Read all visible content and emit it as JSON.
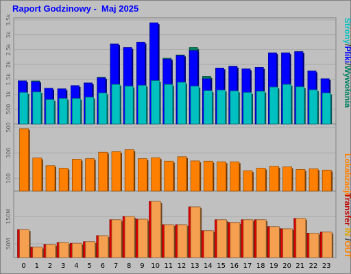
{
  "page_title": "Raport Godzinowy -  Maj 2025",
  "x_ticks": [
    "0",
    "1",
    "2",
    "3",
    "4",
    "5",
    "6",
    "7",
    "8",
    "9",
    "10",
    "11",
    "12",
    "13",
    "14",
    "15",
    "16",
    "17",
    "18",
    "19",
    "20",
    "21",
    "22",
    "23"
  ],
  "panels": {
    "top": {
      "label_parts": [
        {
          "text": "Strony",
          "color": "#00c0c0"
        },
        {
          "text": "/",
          "color": "#404040"
        },
        {
          "text": "Pliki",
          "color": "#0000ff"
        },
        {
          "text": "/",
          "color": "#404040"
        },
        {
          "text": "Wywołania",
          "color": "#008060"
        }
      ],
      "ticks": [
        "500",
        "1k",
        "1.5k",
        "2k",
        "2.5k",
        "3k",
        "3.5k"
      ]
    },
    "middle": {
      "label_parts": [
        {
          "text": "Lokalizacje",
          "color": "#ff8000"
        }
      ],
      "ticks": [
        "100",
        "300",
        "500"
      ]
    },
    "bottom": {
      "label_parts": [
        {
          "text": "Transfer",
          "color": "#c00000"
        },
        {
          "text": " IN ",
          "color": "#e0a000"
        },
        {
          "text": "/",
          "color": "#404040"
        },
        {
          "text": "OUT",
          "color": "#ff8000"
        }
      ],
      "ticks": [
        "50M",
        "150M"
      ]
    }
  },
  "chart_data": [
    {
      "type": "bar",
      "categories": [
        "0",
        "1",
        "2",
        "3",
        "4",
        "5",
        "6",
        "7",
        "8",
        "9",
        "10",
        "11",
        "12",
        "13",
        "14",
        "15",
        "16",
        "17",
        "18",
        "19",
        "20",
        "21",
        "22",
        "23"
      ],
      "ylim": [
        0,
        3500
      ],
      "series": [
        {
          "name": "Wywołania",
          "color": "#008060",
          "values": [
            1450,
            1450,
            1200,
            1180,
            1290,
            1380,
            1570,
            2690,
            2570,
            2750,
            3400,
            2210,
            2320,
            2570,
            1600,
            1880,
            1940,
            1850,
            1900,
            2390,
            2390,
            2440,
            1780,
            1520
          ]
        },
        {
          "name": "Pliki",
          "color": "#0000ff",
          "values": [
            1450,
            1420,
            1200,
            1180,
            1290,
            1380,
            1550,
            2690,
            2570,
            2750,
            3400,
            2180,
            2300,
            2470,
            1520,
            1880,
            1940,
            1850,
            1900,
            2390,
            2390,
            2430,
            1780,
            1520
          ]
        },
        {
          "name": "Strony",
          "color": "#00c0c0",
          "values": [
            1060,
            1080,
            820,
            860,
            860,
            900,
            1040,
            1330,
            1270,
            1300,
            1460,
            1330,
            1400,
            1270,
            1120,
            1140,
            1110,
            1060,
            1100,
            1240,
            1330,
            1250,
            1150,
            1040
          ]
        }
      ]
    },
    {
      "type": "bar",
      "categories": [
        "0",
        "1",
        "2",
        "3",
        "4",
        "5",
        "6",
        "7",
        "8",
        "9",
        "10",
        "11",
        "12",
        "13",
        "14",
        "15",
        "16",
        "17",
        "18",
        "19",
        "20",
        "21",
        "22",
        "23"
      ],
      "ylim": [
        0,
        500
      ],
      "series": [
        {
          "name": "Lokalizacje",
          "color": "#ff8000",
          "values": [
            490,
            260,
            200,
            180,
            250,
            255,
            305,
            310,
            325,
            255,
            262,
            235,
            270,
            237,
            235,
            230,
            230,
            160,
            180,
            195,
            190,
            170,
            175,
            165
          ]
        }
      ]
    },
    {
      "type": "bar",
      "categories": [
        "0",
        "1",
        "2",
        "3",
        "4",
        "5",
        "6",
        "7",
        "8",
        "9",
        "10",
        "11",
        "12",
        "13",
        "14",
        "15",
        "16",
        "17",
        "18",
        "19",
        "20",
        "21",
        "22",
        "23"
      ],
      "ylim": [
        0,
        230
      ],
      "series": [
        {
          "name": "IN",
          "color": "#e00000",
          "values": [
            102,
            38,
            48,
            55,
            52,
            58,
            80,
            138,
            150,
            140,
            205,
            120,
            120,
            185,
            98,
            138,
            128,
            138,
            138,
            113,
            105,
            143,
            89,
            93
          ]
        },
        {
          "name": "OUT",
          "color": "#f4a050",
          "values": [
            102,
            38,
            48,
            55,
            52,
            58,
            80,
            138,
            150,
            140,
            205,
            120,
            120,
            185,
            98,
            138,
            128,
            138,
            138,
            113,
            105,
            143,
            89,
            93
          ]
        }
      ]
    }
  ]
}
